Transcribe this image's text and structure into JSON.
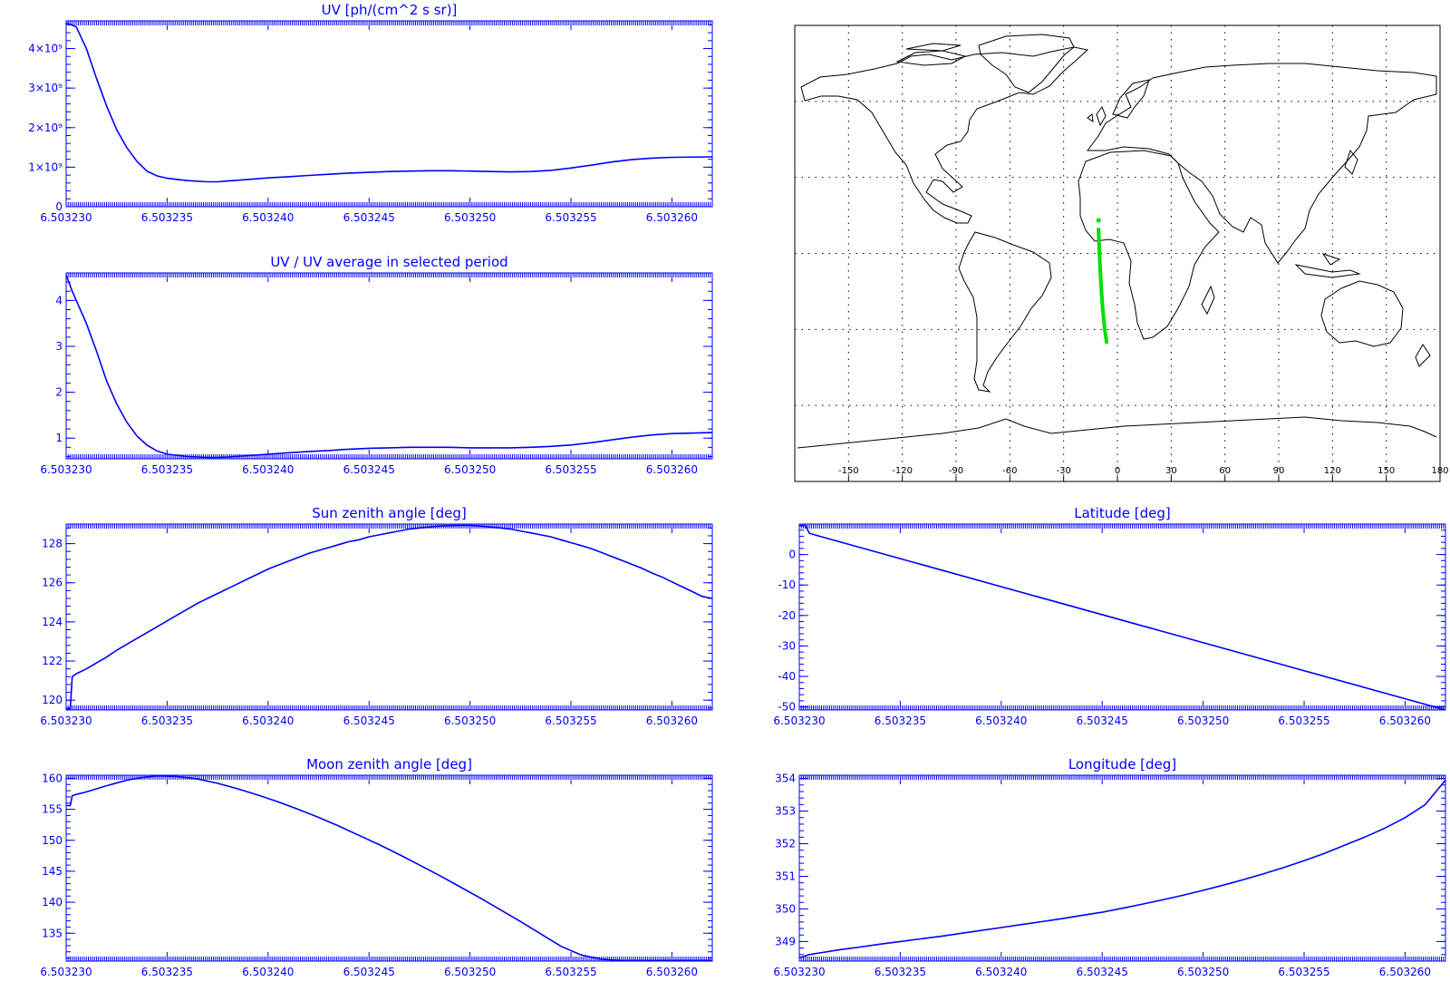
{
  "colors": {
    "plot": "#0000ff",
    "track": "#00e000",
    "map": "#000000",
    "background": "#ffffff"
  },
  "chart_data": [
    {
      "id": "uv",
      "type": "line",
      "title": "UV [ph/(cm^2 s sr)]",
      "xlabel": "",
      "ylabel": "",
      "xlim": [
        6.50323,
        6.503262
      ],
      "ylim": [
        0,
        4700000000
      ],
      "x_ticks": [
        "6.503230",
        "6.503235",
        "6.503240",
        "6.503245",
        "6.503250",
        "6.503255",
        "6.503260"
      ],
      "y_ticks": [
        {
          "value": 0,
          "label": "0"
        },
        {
          "value": 1000000000,
          "label": "1×10⁹"
        },
        {
          "value": 2000000000,
          "label": "2×10⁹"
        },
        {
          "value": 3000000000,
          "label": "3×10⁹"
        },
        {
          "value": 4000000000,
          "label": "4×10⁹"
        }
      ],
      "series": [
        {
          "x": [
            6.50323,
            6.5032305,
            6.503231,
            6.5032315,
            6.503232,
            6.5032325,
            6.503233,
            6.5032335,
            6.503234,
            6.5032345,
            6.503235,
            6.503236,
            6.503237,
            6.5032375,
            6.503238,
            6.503239,
            6.50324,
            6.503241,
            6.503242,
            6.503243,
            6.503244,
            6.503245,
            6.503246,
            6.503247,
            6.503248,
            6.503249,
            6.50325,
            6.503251,
            6.503252,
            6.503253,
            6.503254,
            6.503255,
            6.503256,
            6.503257,
            6.503258,
            6.503259,
            6.50326,
            6.503262
          ],
          "y": [
            4650000000,
            4550000000,
            4000000000,
            3250000000,
            2550000000,
            1950000000,
            1500000000,
            1150000000,
            900000000,
            780000000,
            720000000,
            660000000,
            630000000,
            630000000,
            650000000,
            690000000,
            730000000,
            760000000,
            790000000,
            820000000,
            850000000,
            870000000,
            890000000,
            900000000,
            910000000,
            910000000,
            900000000,
            890000000,
            880000000,
            890000000,
            920000000,
            980000000,
            1050000000,
            1130000000,
            1190000000,
            1230000000,
            1250000000,
            1260000000
          ]
        }
      ]
    },
    {
      "id": "uv-ratio",
      "type": "line",
      "title": "UV / UV average in selected period",
      "xlabel": "",
      "ylabel": "",
      "xlim": [
        6.50323,
        6.503262
      ],
      "ylim": [
        0.55,
        4.6
      ],
      "x_ticks": [
        "6.503230",
        "6.503235",
        "6.503240",
        "6.503245",
        "6.503250",
        "6.503255",
        "6.503260"
      ],
      "y_ticks": [
        {
          "value": 1,
          "label": "1"
        },
        {
          "value": 2,
          "label": "2"
        },
        {
          "value": 3,
          "label": "3"
        },
        {
          "value": 4,
          "label": "4"
        }
      ],
      "series": [
        {
          "x": [
            6.50323,
            6.5032303,
            6.5032306,
            6.503231,
            6.5032315,
            6.503232,
            6.5032325,
            6.503233,
            6.5032335,
            6.503234,
            6.5032345,
            6.503235,
            6.503236,
            6.503237,
            6.5032375,
            6.503238,
            6.503239,
            6.50324,
            6.503241,
            6.503242,
            6.503243,
            6.503244,
            6.503245,
            6.503246,
            6.503247,
            6.503248,
            6.503249,
            6.50325,
            6.503251,
            6.503252,
            6.503253,
            6.503254,
            6.503255,
            6.503256,
            6.503257,
            6.503258,
            6.503259,
            6.50326,
            6.503262
          ],
          "y": [
            4.55,
            4.2,
            3.9,
            3.5,
            2.9,
            2.25,
            1.75,
            1.35,
            1.05,
            0.85,
            0.72,
            0.65,
            0.6,
            0.58,
            0.58,
            0.59,
            0.62,
            0.65,
            0.68,
            0.71,
            0.73,
            0.76,
            0.78,
            0.79,
            0.8,
            0.8,
            0.8,
            0.79,
            0.79,
            0.79,
            0.8,
            0.82,
            0.85,
            0.9,
            0.96,
            1.02,
            1.07,
            1.1,
            1.12
          ]
        }
      ]
    },
    {
      "id": "sun-zenith",
      "type": "line",
      "title": "Sun zenith angle [deg]",
      "xlabel": "",
      "ylabel": "",
      "xlim": [
        6.50323,
        6.503262
      ],
      "ylim": [
        119.5,
        129
      ],
      "x_ticks": [
        "6.503230",
        "6.503235",
        "6.503240",
        "6.503245",
        "6.503250",
        "6.503255",
        "6.503260"
      ],
      "y_ticks": [
        {
          "value": 120,
          "label": "120"
        },
        {
          "value": 122,
          "label": "122"
        },
        {
          "value": 124,
          "label": "124"
        },
        {
          "value": 126,
          "label": "126"
        },
        {
          "value": 128,
          "label": "128"
        }
      ],
      "series": [
        {
          "x": [
            6.50323,
            6.5032302,
            6.5032303,
            6.5032305,
            6.503231,
            6.5032315,
            6.503232,
            6.5032325,
            6.503233,
            6.5032335,
            6.503234,
            6.5032345,
            6.503235,
            6.5032355,
            6.503236,
            6.5032365,
            6.503237,
            6.5032375,
            6.503238,
            6.5032385,
            6.503239,
            6.5032395,
            6.50324,
            6.5032405,
            6.503241,
            6.5032415,
            6.503242,
            6.5032425,
            6.503243,
            6.5032435,
            6.503244,
            6.5032445,
            6.503245,
            6.5032455,
            6.503246,
            6.5032465,
            6.503247,
            6.5032475,
            6.503248,
            6.5032485,
            6.503249,
            6.5032495,
            6.50325,
            6.5032505,
            6.503251,
            6.5032515,
            6.503252,
            6.5032525,
            6.503253,
            6.5032535,
            6.503254,
            6.5032545,
            6.503255,
            6.5032555,
            6.503256,
            6.5032565,
            6.503257,
            6.5032575,
            6.503258,
            6.5032585,
            6.503259,
            6.5032595,
            6.50326,
            6.5032605,
            6.503261,
            6.5032615,
            6.503262
          ],
          "y": [
            119.55,
            119.55,
            121.2,
            121.35,
            121.6,
            121.9,
            122.2,
            122.55,
            122.85,
            123.15,
            123.45,
            123.75,
            124.05,
            124.35,
            124.65,
            124.95,
            125.2,
            125.45,
            125.7,
            125.95,
            126.2,
            126.45,
            126.7,
            126.9,
            127.1,
            127.3,
            127.5,
            127.65,
            127.8,
            127.95,
            128.1,
            128.2,
            128.35,
            128.45,
            128.55,
            128.65,
            128.75,
            128.8,
            128.85,
            128.9,
            128.92,
            128.93,
            128.93,
            128.9,
            128.85,
            128.8,
            128.75,
            128.65,
            128.55,
            128.45,
            128.35,
            128.2,
            128.05,
            127.9,
            127.75,
            127.55,
            127.35,
            127.15,
            126.95,
            126.75,
            126.5,
            126.3,
            126.05,
            125.8,
            125.55,
            125.3,
            125.2
          ]
        }
      ]
    },
    {
      "id": "latitude",
      "type": "line",
      "title": "Latitude [deg]",
      "xlabel": "",
      "ylabel": "",
      "xlim": [
        6.50323,
        6.503262
      ],
      "ylim": [
        -51,
        10
      ],
      "x_ticks": [
        "6.503230",
        "6.503235",
        "6.503240",
        "6.503245",
        "6.503250",
        "6.503255",
        "6.503260"
      ],
      "y_ticks": [
        {
          "value": 0,
          "label": "0"
        },
        {
          "value": -10,
          "label": "-10"
        },
        {
          "value": -20,
          "label": "-20"
        },
        {
          "value": -30,
          "label": "-30"
        },
        {
          "value": -40,
          "label": "-40"
        },
        {
          "value": -50,
          "label": "-50"
        }
      ],
      "series": [
        {
          "x": [
            6.50323,
            6.5032303,
            6.5032305,
            6.503231,
            6.503262
          ],
          "y": [
            9.5,
            9.5,
            7,
            6,
            -51
          ]
        }
      ]
    },
    {
      "id": "moon-zenith",
      "type": "line",
      "title": "Moon zenith angle [deg]",
      "xlabel": "",
      "ylabel": "",
      "xlim": [
        6.50323,
        6.503262
      ],
      "ylim": [
        130.5,
        160.5
      ],
      "x_ticks": [
        "6.503230",
        "6.503235",
        "6.503240",
        "6.503245",
        "6.503250",
        "6.503255",
        "6.503260"
      ],
      "y_ticks": [
        {
          "value": 135,
          "label": "135"
        },
        {
          "value": 140,
          "label": "140"
        },
        {
          "value": 145,
          "label": "145"
        },
        {
          "value": 150,
          "label": "150"
        },
        {
          "value": 155,
          "label": "155"
        },
        {
          "value": 160,
          "label": "160"
        }
      ],
      "series": [
        {
          "x": [
            6.50323,
            6.5032302,
            6.5032303,
            6.5032305,
            6.503231,
            6.503232,
            6.503233,
            6.5032337,
            6.5032345,
            6.5032355,
            6.5032365,
            6.5032375,
            6.5032385,
            6.5032395,
            6.5032405,
            6.5032415,
            6.5032425,
            6.5032435,
            6.5032445,
            6.5032455,
            6.5032465,
            6.5032475,
            6.5032485,
            6.5032495,
            6.5032505,
            6.5032515,
            6.5032525,
            6.5032535,
            6.5032545,
            6.5032555,
            6.5032565,
            6.5032575,
            6.5032585,
            6.5032595,
            6.5032605,
            6.5032615,
            6.503262
          ],
          "y": [
            155.6,
            155.6,
            157.2,
            157.4,
            157.8,
            158.8,
            159.7,
            160.1,
            160.4,
            160.3,
            159.9,
            159.2,
            158.3,
            157.3,
            156.2,
            155.0,
            153.7,
            152.3,
            150.8,
            149.3,
            147.7,
            146.0,
            144.3,
            142.5,
            140.7,
            138.8,
            136.9,
            134.9,
            132.9,
            131.5,
            130.8,
            130.6,
            130.6,
            130.6,
            130.6,
            130.6,
            130.6
          ]
        }
      ]
    },
    {
      "id": "longitude",
      "type": "line",
      "title": "Longitude [deg]",
      "xlabel": "",
      "ylabel": "",
      "xlim": [
        6.50323,
        6.503262
      ],
      "ylim": [
        348.4,
        354.1
      ],
      "x_ticks": [
        "6.503230",
        "6.503235",
        "6.503240",
        "6.503245",
        "6.503250",
        "6.503255",
        "6.503260"
      ],
      "y_ticks": [
        {
          "value": 349,
          "label": "349"
        },
        {
          "value": 350,
          "label": "350"
        },
        {
          "value": 351,
          "label": "351"
        },
        {
          "value": 352,
          "label": "352"
        },
        {
          "value": 353,
          "label": "353"
        },
        {
          "value": 354,
          "label": "354"
        }
      ],
      "series": [
        {
          "x": [
            6.50323,
            6.5032305,
            6.503231,
            6.503232,
            6.503233,
            6.503234,
            6.503235,
            6.503236,
            6.503237,
            6.503238,
            6.503239,
            6.50324,
            6.503241,
            6.503242,
            6.503243,
            6.503244,
            6.503245,
            6.503246,
            6.503247,
            6.503248,
            6.503249,
            6.50325,
            6.503251,
            6.503252,
            6.503253,
            6.503254,
            6.503255,
            6.503256,
            6.503257,
            6.503258,
            6.503259,
            6.50326,
            6.503261,
            6.503262
          ],
          "y": [
            348.5,
            348.6,
            348.65,
            348.75,
            348.83,
            348.92,
            349.0,
            349.08,
            349.16,
            349.25,
            349.34,
            349.43,
            349.52,
            349.61,
            349.7,
            349.8,
            349.9,
            350.02,
            350.15,
            350.28,
            350.42,
            350.57,
            350.73,
            350.9,
            351.08,
            351.27,
            351.48,
            351.7,
            351.95,
            352.2,
            352.48,
            352.8,
            353.2,
            353.95
          ]
        }
      ]
    }
  ],
  "map": {
    "x_ticks": [
      -150,
      -120,
      -90,
      -60,
      -30,
      0,
      30,
      60,
      90,
      120,
      150,
      180
    ],
    "x_tick_labels": [
      "-150",
      "-120",
      "-90",
      "-60",
      "-30",
      "0",
      "30",
      "60",
      "90",
      "120",
      "150",
      "180"
    ],
    "lon_range": [
      -180,
      180
    ],
    "lat_range": [
      -90,
      90
    ],
    "grid_lat": [
      60,
      30,
      0,
      -30,
      -60
    ],
    "track": {
      "lon": [
        -10.5,
        -10.3,
        -10.0,
        -9.7,
        -9.3,
        -8.9,
        -8.4,
        -7.8,
        -7.1,
        -6.0
      ],
      "lat": [
        9.5,
        5,
        0,
        -5,
        -10,
        -15,
        -20,
        -25,
        -30,
        -35
      ]
    }
  }
}
